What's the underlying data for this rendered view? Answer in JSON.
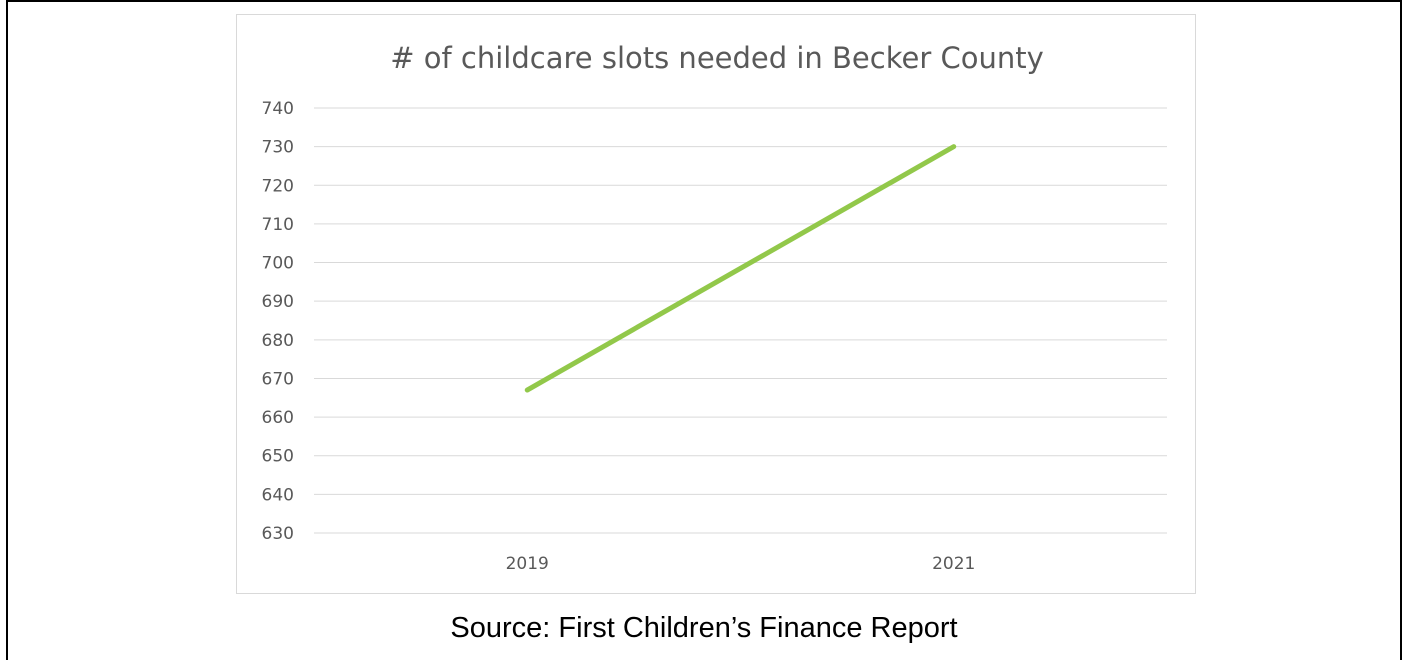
{
  "caption": "Source: First Children’s Finance Report",
  "colors": {
    "line": "#92c84a",
    "grid": "#d9d9d9",
    "text": "#595959"
  },
  "chart_data": {
    "type": "line",
    "title": "# of childcare slots needed in Becker County",
    "xlabel": "",
    "ylabel": "",
    "categories": [
      "2019",
      "2021"
    ],
    "series": [
      {
        "values": [
          667,
          730
        ]
      }
    ],
    "ylim": [
      630,
      740
    ],
    "yticks": [
      630,
      640,
      650,
      660,
      670,
      680,
      690,
      700,
      710,
      720,
      730,
      740
    ],
    "grid": true,
    "legend": "none"
  }
}
